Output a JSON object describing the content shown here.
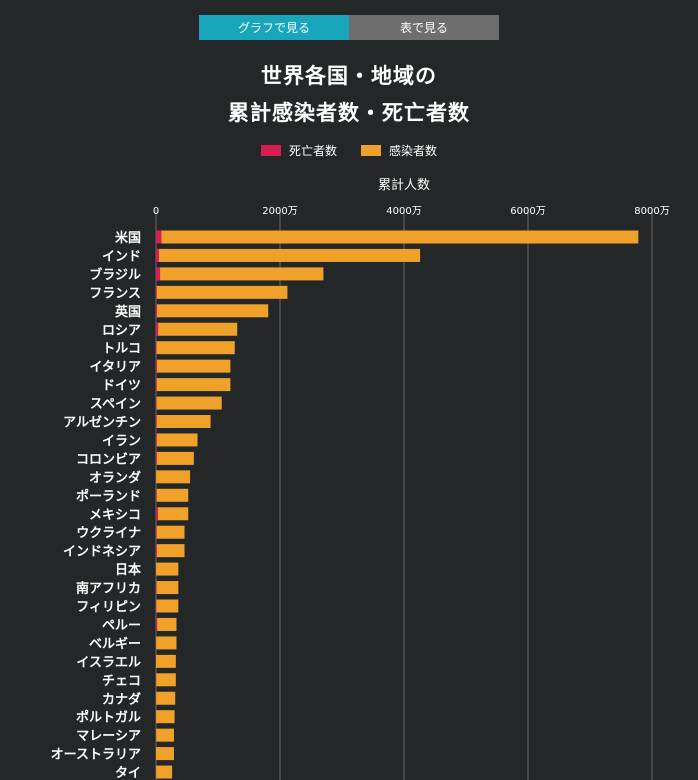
{
  "tabs": {
    "graph": "グラフで見る",
    "table": "表で見る"
  },
  "title_line1": "世界各国・地域の",
  "title_line2": "累計感染者数・死亡者数",
  "colors": {
    "deaths": "#d81d55",
    "cases": "#f0a12a",
    "tab_active": "#17a6bc",
    "tab_inactive": "#6e6e6e",
    "background": "#232727",
    "grid": "#6a6a6a"
  },
  "chart_data": {
    "type": "bar",
    "orientation": "horizontal",
    "stacked": true,
    "title": "累計人数",
    "unit": "万",
    "xlim": [
      0,
      8000
    ],
    "xticks": [
      0,
      2000,
      4000,
      6000,
      8000
    ],
    "xtick_labels": [
      "0",
      "2000万",
      "4000万",
      "6000万",
      "8000万"
    ],
    "grid": true,
    "legend_position": "top-center",
    "categories": [
      "米国",
      "インド",
      "ブラジル",
      "フランス",
      "英国",
      "ロシア",
      "トルコ",
      "イタリア",
      "ドイツ",
      "スペイン",
      "アルゼンチン",
      "イラン",
      "コロンビア",
      "オランダ",
      "ポーランド",
      "メキシコ",
      "ウクライナ",
      "インドネシア",
      "日本",
      "南アフリカ",
      "フィリピン",
      "ペルー",
      "ベルギー",
      "イスラエル",
      "チェコ",
      "カナダ",
      "ポルトガル",
      "マレーシア",
      "オーストラリア",
      "タイ"
    ],
    "series": [
      {
        "name": "死亡者数",
        "values": [
          88,
          48,
          66,
          13,
          16,
          35,
          9,
          16,
          12,
          10,
          12,
          13,
          14,
          2,
          12,
          32,
          11,
          15,
          2,
          10,
          6,
          21,
          3,
          1,
          4,
          3,
          2,
          4,
          1,
          3
        ]
      },
      {
        "name": "感染者数",
        "values": [
          7780,
          4260,
          2700,
          2120,
          1810,
          1310,
          1270,
          1200,
          1200,
          1060,
          880,
          670,
          610,
          550,
          520,
          520,
          460,
          460,
          360,
          360,
          360,
          330,
          330,
          320,
          320,
          310,
          300,
          290,
          290,
          260
        ]
      }
    ]
  }
}
